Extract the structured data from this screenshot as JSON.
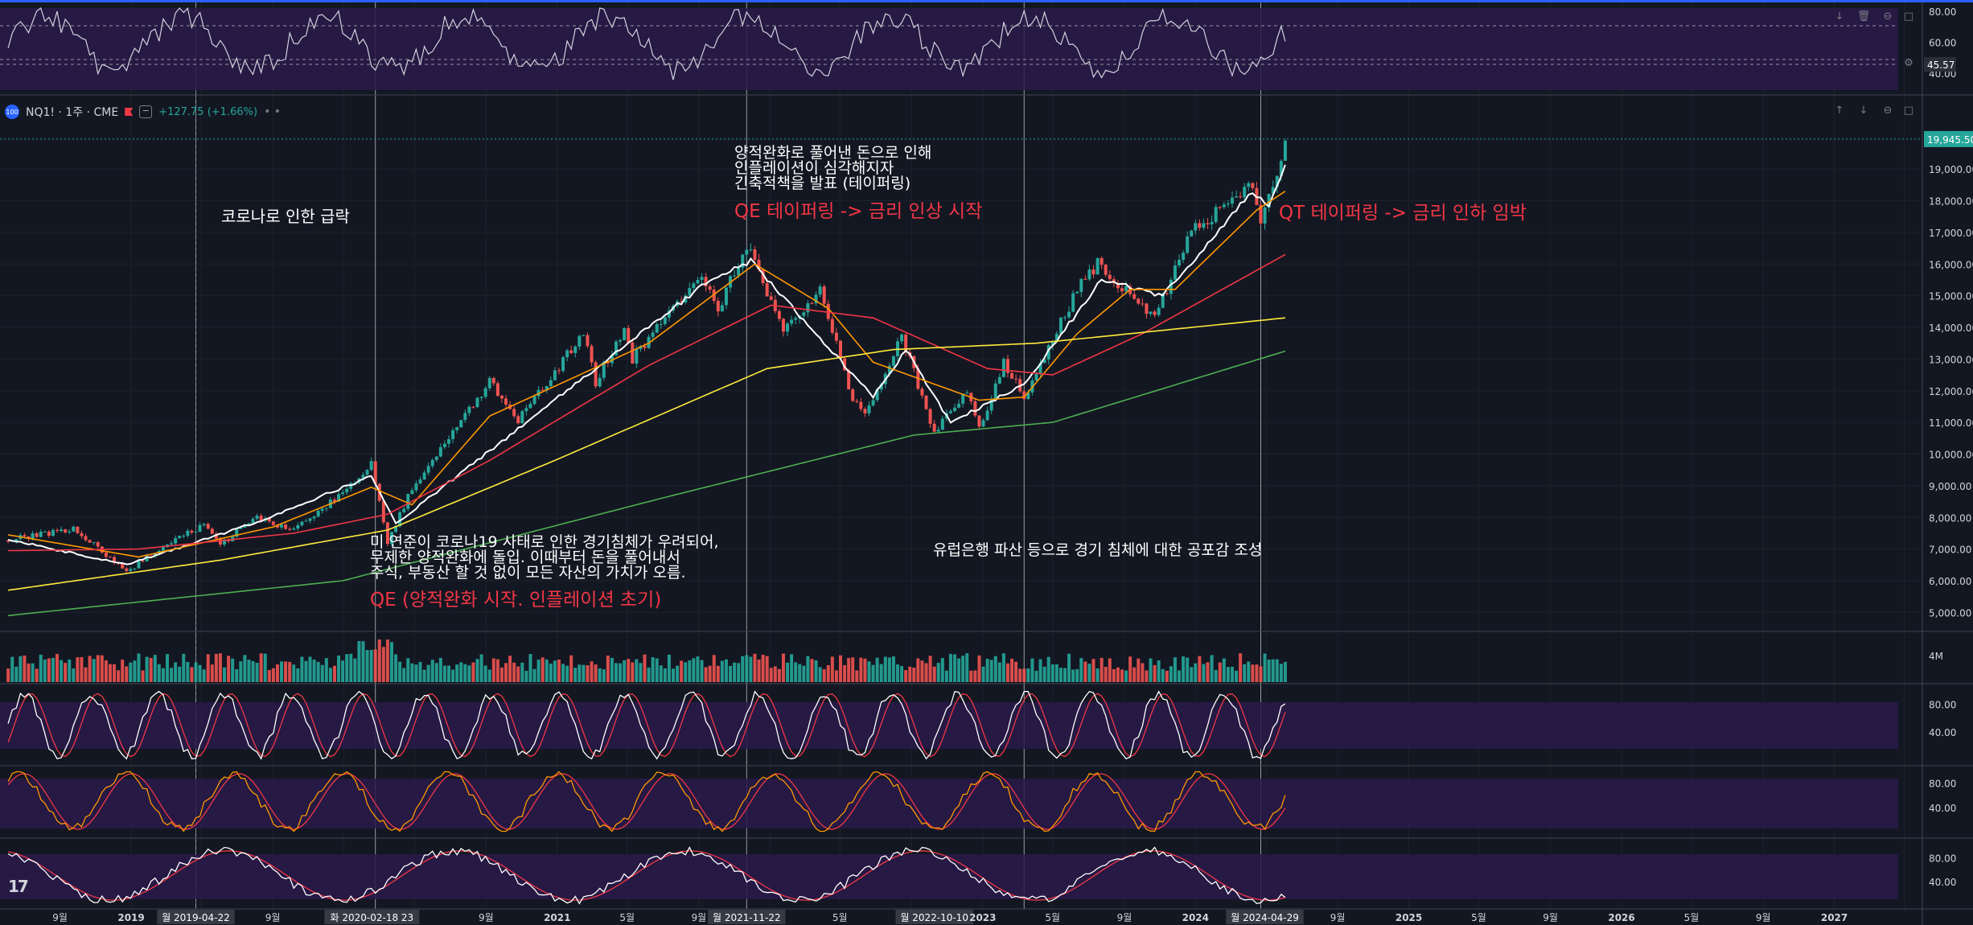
{
  "header": {
    "symbol": "NQ1!",
    "timeframe": "1주",
    "exchange": "CME",
    "symbol_line": "NQ1! · 1주 · CME",
    "change": "+127.75 (+1.66%)",
    "logo_text": "100"
  },
  "colors": {
    "background": "#131722",
    "grid": "#1e222d",
    "candle_up": "#26a69a",
    "candle_down": "#ef5350",
    "ma_white": "#ffffff",
    "ma_orange": "#ff9800",
    "ma_red": "#f23645",
    "ma_yellow": "#ffeb3b",
    "ma_green": "#4caf50",
    "oscillator_band": "#2a1a4a",
    "annotation_red": "#f23645"
  },
  "chart_data": {
    "type": "candlestick",
    "interval": "weekly",
    "price_axis": {
      "ticks": [
        "19,000.00",
        "18,000.00",
        "17,000.00",
        "16,000.00",
        "15,000.00",
        "14,000.00",
        "13,000.00",
        "12,000.00",
        "11,000.00",
        "10,000.00",
        "9,000.00",
        "8,000.00",
        "7,000.00",
        "6,000.00",
        "5,000.00"
      ],
      "range": [
        4400,
        20400
      ],
      "last_price_label": "19,945.50"
    },
    "time_axis": {
      "labels": [
        "9월",
        "2019",
        "2019-04-22",
        "9월",
        "2020-02-18",
        "9월",
        "2021",
        "5월",
        "9월",
        "2021-11-22",
        "5월",
        "2022-10-10",
        "2023",
        "5월",
        "9월",
        "2024",
        "2024-04-29",
        "9월",
        "2025",
        "5월",
        "9월",
        "2026",
        "5월",
        "9월",
        "2027"
      ],
      "range": [
        "2018-05-21",
        "2027-06-01"
      ]
    },
    "highlighted_dates": [
      "2019-04-22",
      "2020-02-18",
      "2021-11-22",
      "2022-10-10",
      "2024-04-29"
    ],
    "highlighted_date_labels": [
      "월 2019-04-22",
      "화 2020-02-18 23",
      "월 2021-11-22",
      "월 2022-10-10",
      "월 2024-04-29"
    ],
    "vertical_lines": [
      "2019-04-22",
      "2020-02-24",
      "2021-11-22",
      "2023-03-13",
      "2024-04-22"
    ],
    "price_keypoints": [
      [
        "2018-06-04",
        7280
      ],
      [
        "2018-09-24",
        7650
      ],
      [
        "2018-12-24",
        6300
      ],
      [
        "2019-02-25",
        7050
      ],
      [
        "2019-05-06",
        7780
      ],
      [
        "2019-06-03",
        7100
      ],
      [
        "2019-07-29",
        8000
      ],
      [
        "2019-10-07",
        7600
      ],
      [
        "2019-12-30",
        8750
      ],
      [
        "2020-02-17",
        9700
      ],
      [
        "2020-03-16",
        7200
      ],
      [
        "2020-04-27",
        8950
      ],
      [
        "2020-06-08",
        10000
      ],
      [
        "2020-09-07",
        12300
      ],
      [
        "2020-10-26",
        11050
      ],
      [
        "2021-02-15",
        13800
      ],
      [
        "2021-03-08",
        12250
      ],
      [
        "2021-04-26",
        14000
      ],
      [
        "2021-05-10",
        13000
      ],
      [
        "2021-09-06",
        15700
      ],
      [
        "2021-10-04",
        14600
      ],
      [
        "2021-11-22",
        16600
      ],
      [
        "2022-01-24",
        13850
      ],
      [
        "2022-03-28",
        15200
      ],
      [
        "2022-05-23",
        11700
      ],
      [
        "2022-06-13",
        11200
      ],
      [
        "2022-08-15",
        13700
      ],
      [
        "2022-10-10",
        10700
      ],
      [
        "2022-12-05",
        12000
      ],
      [
        "2022-12-26",
        10800
      ],
      [
        "2023-02-06",
        12850
      ],
      [
        "2023-03-13",
        11800
      ],
      [
        "2023-06-12",
        15200
      ],
      [
        "2023-07-17",
        16000
      ],
      [
        "2023-10-23",
        14300
      ],
      [
        "2023-12-25",
        17000
      ],
      [
        "2024-04-08",
        18600
      ],
      [
        "2024-04-22",
        17200
      ],
      [
        "2024-05-20",
        18900
      ],
      [
        "2024-06-03",
        19900
      ]
    ],
    "moving_averages": [
      {
        "color": "#ffffff",
        "keypoints": [
          [
            "2018-06-04",
            7300
          ],
          [
            "2018-12-24",
            6500
          ],
          [
            "2019-07-29",
            7800
          ],
          [
            "2020-02-17",
            9300
          ],
          [
            "2020-03-30",
            7800
          ],
          [
            "2021-09-06",
            15300
          ],
          [
            "2021-11-29",
            16100
          ],
          [
            "2022-06-27",
            11800
          ],
          [
            "2022-08-22",
            13300
          ],
          [
            "2022-11-07",
            11000
          ],
          [
            "2023-03-13",
            12200
          ],
          [
            "2023-07-24",
            15500
          ],
          [
            "2023-11-06",
            15000
          ],
          [
            "2024-04-08",
            18300
          ],
          [
            "2024-05-06",
            17800
          ],
          [
            "2024-06-03",
            19200
          ]
        ]
      },
      {
        "color": "#ff9800",
        "keypoints": [
          [
            "2018-06-04",
            7450
          ],
          [
            "2019-01-14",
            6750
          ],
          [
            "2019-09-02",
            7700
          ],
          [
            "2020-02-17",
            8950
          ],
          [
            "2020-04-27",
            8400
          ],
          [
            "2020-09-07",
            11200
          ],
          [
            "2021-06-07",
            13500
          ],
          [
            "2021-12-06",
            16000
          ],
          [
            "2022-04-11",
            14600
          ],
          [
            "2022-06-27",
            12900
          ],
          [
            "2022-12-26",
            11700
          ],
          [
            "2023-03-13",
            11800
          ],
          [
            "2023-06-12",
            13800
          ],
          [
            "2023-09-11",
            15200
          ],
          [
            "2023-11-27",
            15200
          ],
          [
            "2024-04-15",
            17700
          ],
          [
            "2024-06-03",
            18300
          ]
        ]
      },
      {
        "color": "#f23645",
        "keypoints": [
          [
            "2018-06-04",
            6950
          ],
          [
            "2019-01-14",
            7000
          ],
          [
            "2019-10-07",
            7500
          ],
          [
            "2020-03-16",
            8100
          ],
          [
            "2020-09-07",
            9800
          ],
          [
            "2021-06-07",
            12800
          ],
          [
            "2022-01-03",
            14700
          ],
          [
            "2022-06-27",
            14300
          ],
          [
            "2023-01-09",
            12700
          ],
          [
            "2023-05-01",
            12500
          ],
          [
            "2023-10-02",
            13800
          ],
          [
            "2024-06-03",
            16300
          ]
        ]
      },
      {
        "color": "#ffeb3b",
        "keypoints": [
          [
            "2018-06-04",
            5700
          ],
          [
            "2019-06-03",
            6650
          ],
          [
            "2020-03-16",
            7600
          ],
          [
            "2020-12-28",
            9800
          ],
          [
            "2021-12-27",
            12700
          ],
          [
            "2022-08-01",
            13300
          ],
          [
            "2023-04-03",
            13500
          ],
          [
            "2024-06-03",
            14300
          ]
        ]
      },
      {
        "color": "#4caf50",
        "keypoints": [
          [
            "2018-06-04",
            4900
          ],
          [
            "2019-12-30",
            6000
          ],
          [
            "2021-06-28",
            8600
          ],
          [
            "2022-09-05",
            10600
          ],
          [
            "2023-05-01",
            11000
          ],
          [
            "2024-06-03",
            13250
          ]
        ]
      }
    ],
    "rsi_top": {
      "ticks": [
        "80.00",
        "60.00",
        "40.00"
      ],
      "last_value": "45.57",
      "range": [
        30,
        82
      ]
    },
    "volume": {
      "tick": "4M"
    },
    "oscillators": [
      {
        "ticks": [
          "80.00",
          "40.00"
        ],
        "range": [
          0,
          100
        ]
      },
      {
        "ticks": [
          "80.00",
          "40.00"
        ],
        "range": [
          0,
          100
        ]
      },
      {
        "ticks": [
          "80.00",
          "40.00"
        ],
        "range": [
          0,
          100
        ]
      }
    ]
  },
  "annotations": {
    "covid_crash": "코로나로 인한 급락",
    "qe_body_1": "미 연준이 코로나19 사태로 인한 경기침체가 우려되어,",
    "qe_body_2": "무제한 양적완화에 돌입. 이때부터 돈을 풀어내서",
    "qe_body_3": "주식, 부동산 할 것 없이 모든 자산의 가치가 오름.",
    "qe_title": "QE (양적완화 시작. 인플레이션 초기)",
    "taper_body_1": "양적완화로 풀어낸 돈으로 인해",
    "taper_body_2": "인플레이션이 심각해지자",
    "taper_body_3": "긴축적책을 발표 (테이퍼링)",
    "taper_title": "QE 테이퍼링 -> 금리 인상 시작",
    "bank_crisis": "유럽은행 파산 등으로 경기 침체에 대한 공포감 조성",
    "qt_title": "QT 테이퍼링 -> 금리 인하 임박"
  }
}
